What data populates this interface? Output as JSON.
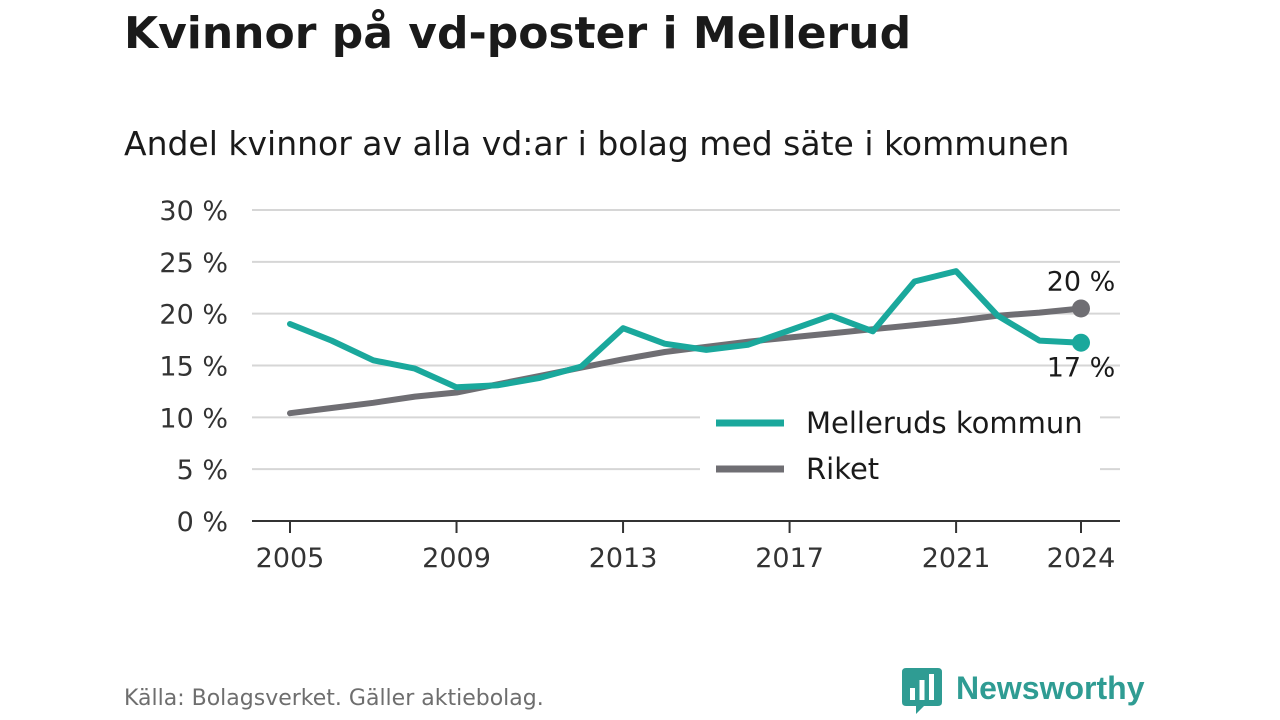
{
  "title": "Kvinnor på vd-poster i Mellerud",
  "subtitle": "Andel kvinnor av alla vd:ar i bolag med säte i kommunen",
  "source": "Källa: Bolagsverket. Gäller aktiebolag.",
  "brand": {
    "name": "Newsworthy",
    "icon": "newsworthy-logo-icon"
  },
  "colors": {
    "teal": "#1aa89c",
    "gray": "#6f6e73",
    "grid": "#d6d6d6",
    "axis": "#333333",
    "brand": "#2f9c93"
  },
  "chart_data": {
    "type": "line",
    "title": "",
    "xlabel": "",
    "ylabel": "",
    "x": [
      2005,
      2006,
      2007,
      2008,
      2009,
      2010,
      2011,
      2012,
      2013,
      2014,
      2015,
      2016,
      2017,
      2018,
      2019,
      2020,
      2021,
      2022,
      2023,
      2024
    ],
    "ylim": [
      0,
      30
    ],
    "yticks": [
      0,
      5,
      10,
      15,
      20,
      25,
      30
    ],
    "ytick_labels": [
      "0 %",
      "5 %",
      "10 %",
      "15 %",
      "20 %",
      "25 %",
      "30 %"
    ],
    "xticks": [
      2005,
      2009,
      2013,
      2017,
      2021,
      2024
    ],
    "xtick_labels": [
      "2005",
      "2009",
      "2013",
      "2017",
      "2021",
      "2024"
    ],
    "grid": true,
    "legend_position": "bottom-right",
    "series": [
      {
        "name": "Melleruds kommun",
        "color": "#1aa89c",
        "values": [
          19.0,
          17.4,
          15.5,
          14.7,
          12.9,
          13.1,
          13.8,
          14.9,
          18.6,
          17.1,
          16.5,
          17.0,
          18.4,
          19.8,
          18.3,
          23.1,
          24.1,
          19.8,
          17.4,
          17.2
        ],
        "end_label": "17 %"
      },
      {
        "name": "Riket",
        "color": "#6f6e73",
        "values": [
          10.4,
          10.9,
          11.4,
          12.0,
          12.4,
          13.2,
          14.0,
          14.8,
          15.6,
          16.3,
          16.8,
          17.3,
          17.7,
          18.1,
          18.5,
          18.9,
          19.3,
          19.8,
          20.1,
          20.5
        ],
        "end_label": "20 %"
      }
    ]
  }
}
